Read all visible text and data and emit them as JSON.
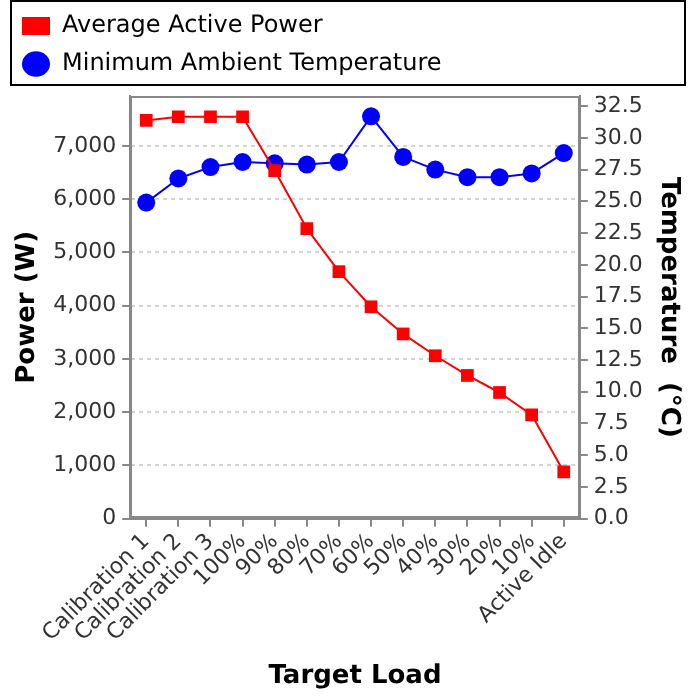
{
  "chart_data": {
    "type": "line",
    "xlabel": "Target Load",
    "ylabel": "Power (W)",
    "y2label": "Temperature  (°C)",
    "categories": [
      "Calibration 1",
      "Calibration 2",
      "Calibration 3",
      "100%",
      "90%",
      "80%",
      "70%",
      "60%",
      "50%",
      "40%",
      "30%",
      "20%",
      "10%",
      "Active Idle"
    ],
    "series": [
      {
        "name": "Average Active Power",
        "color": "#ff0000",
        "marker": "square",
        "values": [
          7480,
          7550,
          7550,
          7550,
          6540,
          5450,
          4640,
          3980,
          3470,
          3060,
          2690,
          2370,
          1950,
          880
        ]
      },
      {
        "name": "Minimum Ambient Temperature",
        "color": "#0000ff",
        "marker": "circle",
        "axis": "y2",
        "values": [
          24.9,
          26.8,
          27.7,
          28.1,
          28.0,
          27.9,
          28.1,
          31.7,
          28.5,
          27.5,
          26.9,
          26.9,
          27.2,
          28.8
        ]
      }
    ],
    "ylim": [
      0,
      7940
    ],
    "yticks": [
      {
        "value": 0,
        "label": "0"
      },
      {
        "value": 1000,
        "label": "1,000"
      },
      {
        "value": 2000,
        "label": "2,000"
      },
      {
        "value": 3000,
        "label": "3,000"
      },
      {
        "value": 4000,
        "label": "4,000"
      },
      {
        "value": 5000,
        "label": "5,000"
      },
      {
        "value": 6000,
        "label": "6,000"
      },
      {
        "value": 7000,
        "label": "7,000"
      }
    ],
    "y2lim": [
      0,
      33.3
    ],
    "y2ticks": [
      {
        "value": 0,
        "label": "0.0"
      },
      {
        "value": 2.5,
        "label": "2.5"
      },
      {
        "value": 5,
        "label": "5.0"
      },
      {
        "value": 7.5,
        "label": "7.5"
      },
      {
        "value": 10,
        "label": "10.0"
      },
      {
        "value": 12.5,
        "label": "12.5"
      },
      {
        "value": 15,
        "label": "15.0"
      },
      {
        "value": 17.5,
        "label": "17.5"
      },
      {
        "value": 20,
        "label": "20.0"
      },
      {
        "value": 22.5,
        "label": "22.5"
      },
      {
        "value": 25,
        "label": "25.0"
      },
      {
        "value": 27.5,
        "label": "27.5"
      },
      {
        "value": 30,
        "label": "30.0"
      },
      {
        "value": 32.5,
        "label": "32.5"
      }
    ],
    "grid": "y",
    "legend": "top",
    "line_style": "solid"
  }
}
